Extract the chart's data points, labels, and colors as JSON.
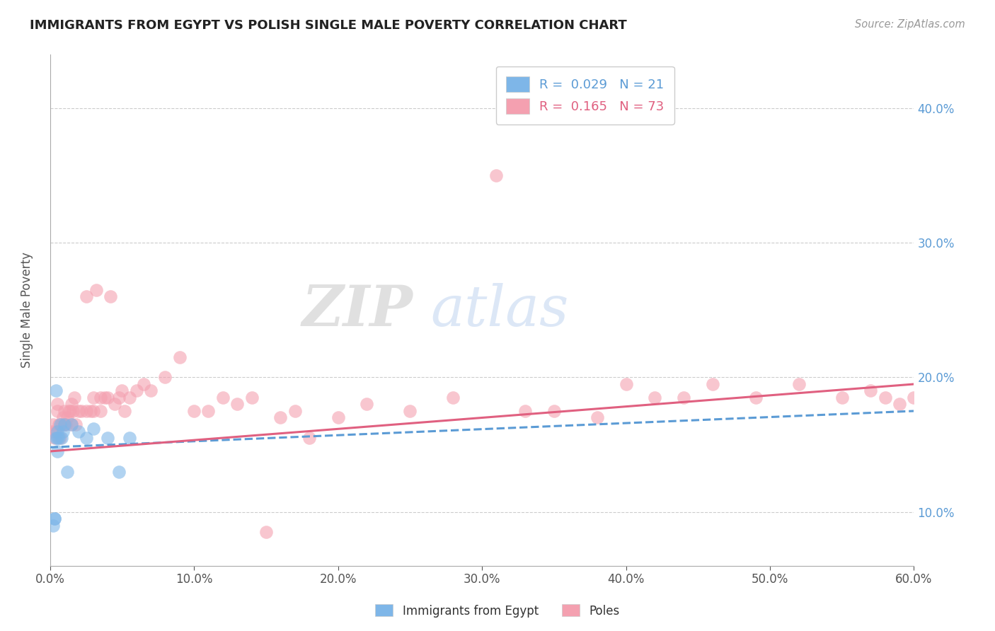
{
  "title": "IMMIGRANTS FROM EGYPT VS POLISH SINGLE MALE POVERTY CORRELATION CHART",
  "source": "Source: ZipAtlas.com",
  "ylabel": "Single Male Poverty",
  "xlim": [
    0.0,
    0.6
  ],
  "ylim": [
    0.06,
    0.44
  ],
  "xticks": [
    0.0,
    0.1,
    0.2,
    0.3,
    0.4,
    0.5,
    0.6
  ],
  "xtick_labels": [
    "0.0%",
    "10.0%",
    "20.0%",
    "30.0%",
    "40.0%",
    "50.0%",
    "60.0%"
  ],
  "yticks": [
    0.1,
    0.2,
    0.3,
    0.4
  ],
  "ytick_labels": [
    "10.0%",
    "20.0%",
    "30.0%",
    "40.0%"
  ],
  "r1": 0.029,
  "n1": 21,
  "r2": 0.165,
  "n2": 73,
  "color_egypt": "#7EB6E8",
  "color_poles": "#F4A0B0",
  "color_egypt_line": "#5B9BD5",
  "color_poles_line": "#E06080",
  "egypt_x": [
    0.002,
    0.003,
    0.003,
    0.004,
    0.004,
    0.005,
    0.005,
    0.005,
    0.006,
    0.007,
    0.008,
    0.009,
    0.01,
    0.012,
    0.015,
    0.02,
    0.025,
    0.03,
    0.04,
    0.048,
    0.055
  ],
  "egypt_y": [
    0.09,
    0.095,
    0.095,
    0.155,
    0.19,
    0.145,
    0.155,
    0.16,
    0.155,
    0.165,
    0.155,
    0.16,
    0.165,
    0.13,
    0.165,
    0.16,
    0.155,
    0.162,
    0.155,
    0.13,
    0.155
  ],
  "poles_x": [
    0.001,
    0.002,
    0.003,
    0.004,
    0.005,
    0.005,
    0.006,
    0.007,
    0.008,
    0.009,
    0.01,
    0.01,
    0.011,
    0.012,
    0.013,
    0.014,
    0.015,
    0.015,
    0.016,
    0.017,
    0.018,
    0.02,
    0.022,
    0.025,
    0.025,
    0.028,
    0.03,
    0.03,
    0.032,
    0.035,
    0.035,
    0.038,
    0.04,
    0.042,
    0.045,
    0.048,
    0.05,
    0.052,
    0.055,
    0.06,
    0.065,
    0.07,
    0.08,
    0.09,
    0.1,
    0.11,
    0.12,
    0.13,
    0.14,
    0.15,
    0.16,
    0.17,
    0.18,
    0.2,
    0.22,
    0.25,
    0.28,
    0.31,
    0.33,
    0.35,
    0.38,
    0.4,
    0.42,
    0.44,
    0.46,
    0.49,
    0.52,
    0.55,
    0.57,
    0.58,
    0.59,
    0.6,
    0.61
  ],
  "poles_y": [
    0.16,
    0.165,
    0.155,
    0.16,
    0.18,
    0.175,
    0.165,
    0.155,
    0.165,
    0.17,
    0.165,
    0.175,
    0.165,
    0.17,
    0.175,
    0.175,
    0.18,
    0.165,
    0.175,
    0.185,
    0.165,
    0.175,
    0.175,
    0.175,
    0.26,
    0.175,
    0.185,
    0.175,
    0.265,
    0.185,
    0.175,
    0.185,
    0.185,
    0.26,
    0.18,
    0.185,
    0.19,
    0.175,
    0.185,
    0.19,
    0.195,
    0.19,
    0.2,
    0.215,
    0.175,
    0.175,
    0.185,
    0.18,
    0.185,
    0.085,
    0.17,
    0.175,
    0.155,
    0.17,
    0.18,
    0.175,
    0.185,
    0.35,
    0.175,
    0.175,
    0.17,
    0.195,
    0.185,
    0.185,
    0.195,
    0.185,
    0.195,
    0.185,
    0.19,
    0.185,
    0.18,
    0.185,
    0.195
  ],
  "egypt_line_x0": 0.0,
  "egypt_line_x1": 0.6,
  "egypt_line_y0": 0.148,
  "egypt_line_y1": 0.175,
  "poles_line_x0": 0.0,
  "poles_line_x1": 0.6,
  "poles_line_y0": 0.145,
  "poles_line_y1": 0.195
}
